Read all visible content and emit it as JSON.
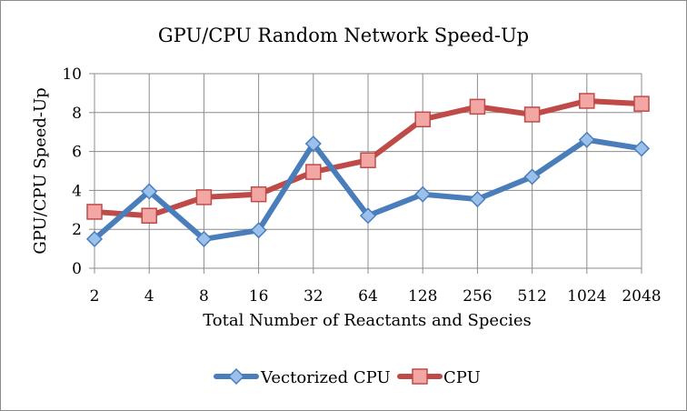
{
  "chart_data": {
    "type": "line",
    "title": "GPU/CPU Random Network Speed-Up",
    "xlabel": "Total Number of Reactants and Species",
    "ylabel": "GPU/CPU Speed-Up",
    "categories": [
      "2",
      "4",
      "8",
      "16",
      "32",
      "64",
      "128",
      "256",
      "512",
      "1024",
      "2048"
    ],
    "ylim": [
      0,
      10
    ],
    "yticks": [
      "0",
      "2",
      "4",
      "6",
      "8",
      "10"
    ],
    "grid": true,
    "legend_position": "bottom",
    "series": [
      {
        "name": "Vectorized CPU",
        "color": "#4a7ebb",
        "marker": "diamond",
        "values": [
          1.5,
          3.95,
          1.5,
          1.95,
          6.4,
          2.7,
          3.8,
          3.55,
          4.7,
          6.6,
          6.15
        ]
      },
      {
        "name": "CPU",
        "color": "#be4b48",
        "marker": "square",
        "values": [
          2.9,
          2.7,
          3.65,
          3.8,
          4.95,
          5.55,
          7.65,
          8.3,
          7.9,
          8.6,
          8.45
        ]
      }
    ]
  }
}
